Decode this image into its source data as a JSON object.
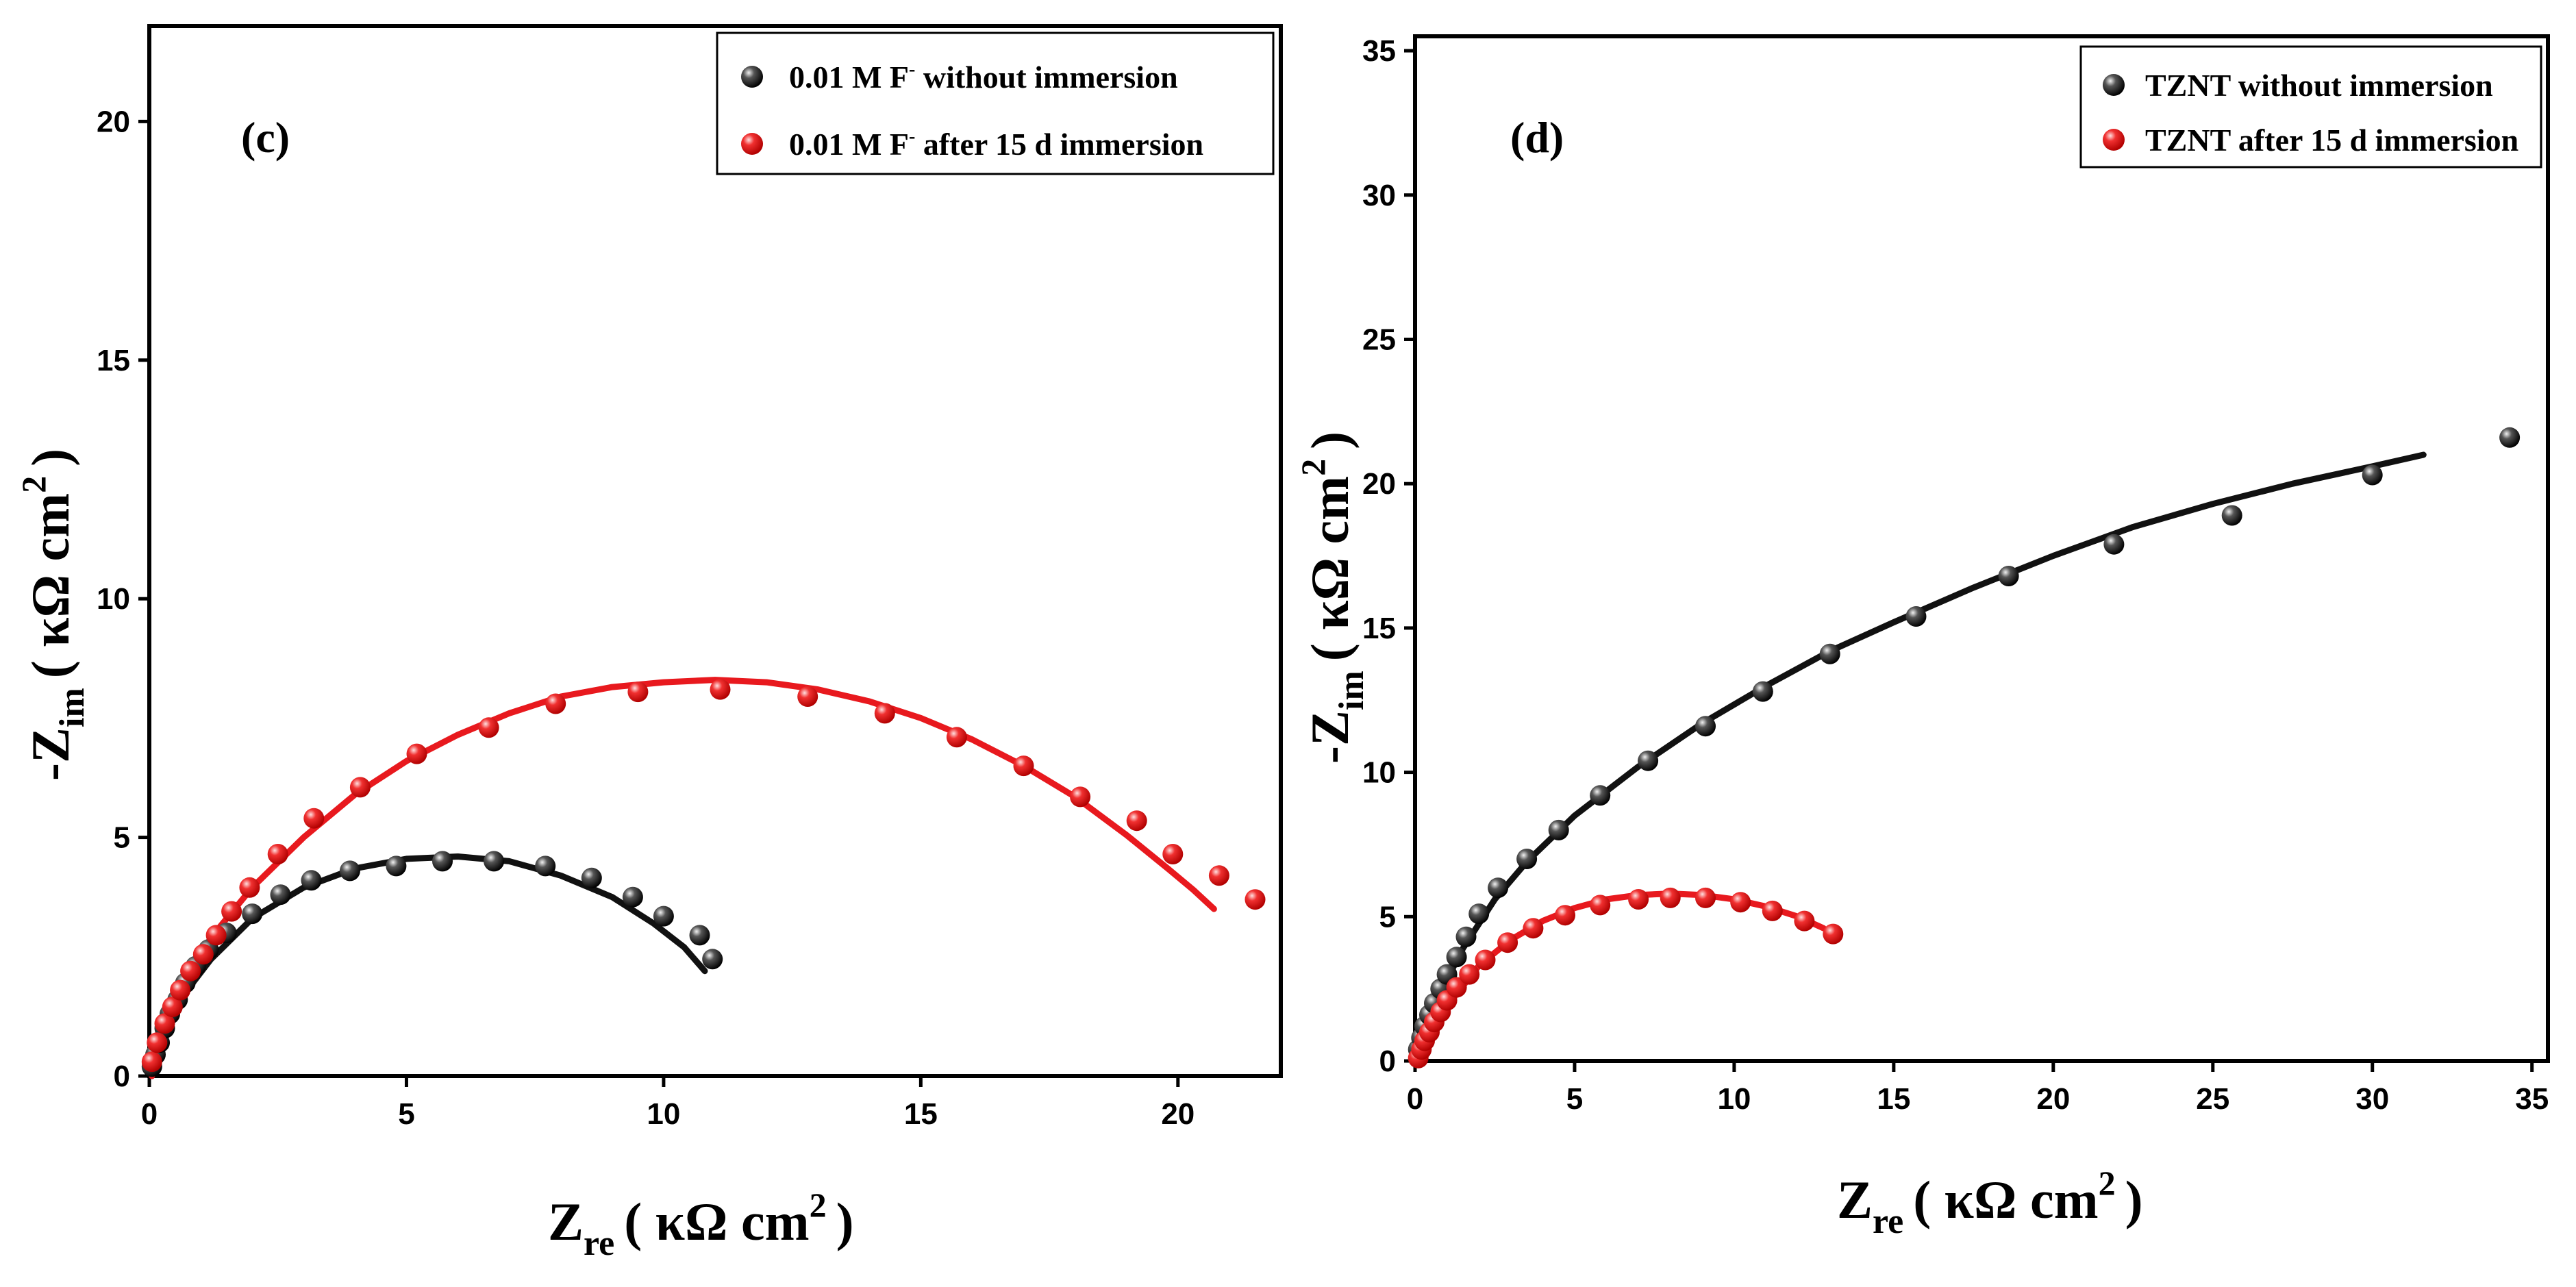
{
  "chart_data": [
    {
      "type": "scatter",
      "panel": "(c)",
      "xlabel_main": "Z",
      "xlabel_sub": "re",
      "xlabel_unit": "( κΩ  cm",
      "xlabel_sup": "2",
      "xlabel_close": ")",
      "ylabel_main": "-Z",
      "ylabel_sub": "im",
      "ylabel_unit": "( κΩ cm",
      "ylabel_sup": "2",
      "ylabel_close": ")",
      "xlim": [
        0,
        22
      ],
      "ylim": [
        0,
        22
      ],
      "xticks": [
        0,
        5,
        10,
        15,
        20
      ],
      "yticks": [
        0,
        5,
        10,
        15,
        20
      ],
      "legend": [
        {
          "text_a": "0.01   M F",
          "sup": "-",
          "text_b": " without immersion",
          "color": "#000000"
        },
        {
          "text_a": "0.01   M F",
          "sup": "-",
          "text_b": " after 15 d immersion",
          "color": "#e8191e"
        }
      ],
      "series": [
        {
          "name": "0.01 M F- without immersion",
          "color": "#111111",
          "points": [
            [
              0.05,
              0.2
            ],
            [
              0.12,
              0.45
            ],
            [
              0.2,
              0.7
            ],
            [
              0.3,
              1.0
            ],
            [
              0.4,
              1.3
            ],
            [
              0.55,
              1.6
            ],
            [
              0.7,
              1.95
            ],
            [
              0.9,
              2.3
            ],
            [
              1.15,
              2.65
            ],
            [
              1.5,
              3.0
            ],
            [
              2.0,
              3.4
            ],
            [
              2.55,
              3.8
            ],
            [
              3.15,
              4.1
            ],
            [
              3.9,
              4.3
            ],
            [
              4.8,
              4.4
            ],
            [
              5.7,
              4.5
            ],
            [
              6.7,
              4.5
            ],
            [
              7.7,
              4.4
            ],
            [
              8.6,
              4.15
            ],
            [
              9.4,
              3.75
            ],
            [
              10.0,
              3.35
            ],
            [
              10.7,
              2.95
            ],
            [
              10.95,
              2.45
            ]
          ],
          "fit": [
            [
              0.05,
              0.0
            ],
            [
              0.3,
              0.9
            ],
            [
              0.7,
              1.75
            ],
            [
              1.2,
              2.45
            ],
            [
              2.0,
              3.3
            ],
            [
              3.0,
              3.95
            ],
            [
              4.0,
              4.35
            ],
            [
              5.0,
              4.55
            ],
            [
              6.0,
              4.6
            ],
            [
              7.0,
              4.5
            ],
            [
              8.0,
              4.2
            ],
            [
              9.0,
              3.75
            ],
            [
              9.8,
              3.2
            ],
            [
              10.4,
              2.7
            ],
            [
              10.8,
              2.2
            ]
          ]
        },
        {
          "name": "0.01 M F- after 15 d immersion",
          "color": "#e8191e",
          "points": [
            [
              0.05,
              0.3
            ],
            [
              0.15,
              0.7
            ],
            [
              0.3,
              1.1
            ],
            [
              0.45,
              1.45
            ],
            [
              0.6,
              1.8
            ],
            [
              0.8,
              2.2
            ],
            [
              1.05,
              2.55
            ],
            [
              1.3,
              2.95
            ],
            [
              1.6,
              3.45
            ],
            [
              1.95,
              3.95
            ],
            [
              2.5,
              4.65
            ],
            [
              3.2,
              5.4
            ],
            [
              4.1,
              6.05
            ],
            [
              5.2,
              6.75
            ],
            [
              6.6,
              7.3
            ],
            [
              7.9,
              7.8
            ],
            [
              9.5,
              8.05
            ],
            [
              11.1,
              8.1
            ],
            [
              12.8,
              7.95
            ],
            [
              14.3,
              7.6
            ],
            [
              15.7,
              7.1
            ],
            [
              17.0,
              6.5
            ],
            [
              18.1,
              5.85
            ],
            [
              19.2,
              5.35
            ],
            [
              19.9,
              4.65
            ],
            [
              20.8,
              4.2
            ],
            [
              21.5,
              3.7
            ]
          ],
          "fit": [
            [
              0.05,
              0.0
            ],
            [
              0.3,
              1.0
            ],
            [
              0.7,
              2.0
            ],
            [
              1.2,
              2.9
            ],
            [
              2.0,
              3.95
            ],
            [
              3.0,
              5.0
            ],
            [
              4.0,
              5.9
            ],
            [
              5.0,
              6.6
            ],
            [
              6.0,
              7.15
            ],
            [
              7.0,
              7.6
            ],
            [
              8.0,
              7.95
            ],
            [
              9.0,
              8.15
            ],
            [
              10.0,
              8.25
            ],
            [
              11.0,
              8.3
            ],
            [
              12.0,
              8.25
            ],
            [
              13.0,
              8.1
            ],
            [
              14.0,
              7.85
            ],
            [
              15.0,
              7.5
            ],
            [
              16.0,
              7.05
            ],
            [
              17.0,
              6.5
            ],
            [
              18.0,
              5.85
            ],
            [
              19.0,
              5.05
            ],
            [
              19.8,
              4.35
            ],
            [
              20.3,
              3.9
            ],
            [
              20.7,
              3.5
            ]
          ]
        }
      ]
    },
    {
      "type": "scatter",
      "panel": "(d)",
      "xlabel_main": "Z",
      "xlabel_sub": "re",
      "xlabel_unit": "( κΩ  cm",
      "xlabel_sup": "2",
      "xlabel_close": ")",
      "ylabel_main": "-Z",
      "ylabel_sub": "im",
      "ylabel_unit": "( κΩ cm",
      "ylabel_sup": "2",
      "ylabel_close": ")",
      "xlim": [
        0,
        35.5
      ],
      "ylim": [
        0,
        35.5
      ],
      "xticks": [
        0,
        5,
        10,
        15,
        20,
        25,
        30,
        35
      ],
      "yticks": [
        0,
        5,
        10,
        15,
        20,
        25,
        30,
        35
      ],
      "legend": [
        {
          "text_a": "TZNT without immersion",
          "sup": "",
          "text_b": "",
          "color": "#000000"
        },
        {
          "text_a": "TZNT after 15 d immersion",
          "sup": "",
          "text_b": "",
          "color": "#e8191e"
        }
      ],
      "series": [
        {
          "name": "TZNT without immersion",
          "color": "#111111",
          "points": [
            [
              0.1,
              0.4
            ],
            [
              0.2,
              0.8
            ],
            [
              0.3,
              1.2
            ],
            [
              0.45,
              1.6
            ],
            [
              0.6,
              2.0
            ],
            [
              0.8,
              2.5
            ],
            [
              1.0,
              3.0
            ],
            [
              1.3,
              3.6
            ],
            [
              1.6,
              4.3
            ],
            [
              2.0,
              5.1
            ],
            [
              2.6,
              6.0
            ],
            [
              3.5,
              7.0
            ],
            [
              4.5,
              8.0
            ],
            [
              5.8,
              9.2
            ],
            [
              7.3,
              10.4
            ],
            [
              9.1,
              11.6
            ],
            [
              10.9,
              12.8
            ],
            [
              13.0,
              14.1
            ],
            [
              15.7,
              15.4
            ],
            [
              18.6,
              16.8
            ],
            [
              21.9,
              17.9
            ],
            [
              25.6,
              18.9
            ],
            [
              30.0,
              20.3
            ],
            [
              34.3,
              21.6
            ]
          ],
          "fit": [
            [
              0.0,
              0.0
            ],
            [
              0.3,
              1.1
            ],
            [
              0.8,
              2.4
            ],
            [
              1.5,
              3.9
            ],
            [
              2.5,
              5.6
            ],
            [
              3.5,
              6.9
            ],
            [
              5.0,
              8.5
            ],
            [
              7.0,
              10.2
            ],
            [
              9.0,
              11.7
            ],
            [
              11.0,
              13.0
            ],
            [
              13.0,
              14.2
            ],
            [
              15.0,
              15.2
            ],
            [
              17.5,
              16.4
            ],
            [
              20.0,
              17.5
            ],
            [
              22.5,
              18.5
            ],
            [
              25.0,
              19.3
            ],
            [
              27.5,
              20.0
            ],
            [
              30.0,
              20.6
            ],
            [
              31.6,
              21.0
            ]
          ]
        },
        {
          "name": "TZNT after 15 d immersion",
          "color": "#e8191e",
          "points": [
            [
              0.1,
              0.1
            ],
            [
              0.2,
              0.4
            ],
            [
              0.3,
              0.7
            ],
            [
              0.45,
              1.0
            ],
            [
              0.6,
              1.35
            ],
            [
              0.8,
              1.7
            ],
            [
              1.0,
              2.1
            ],
            [
              1.3,
              2.55
            ],
            [
              1.7,
              3.0
            ],
            [
              2.2,
              3.5
            ],
            [
              2.9,
              4.1
            ],
            [
              3.7,
              4.6
            ],
            [
              4.7,
              5.05
            ],
            [
              5.8,
              5.4
            ],
            [
              7.0,
              5.6
            ],
            [
              8.0,
              5.65
            ],
            [
              9.1,
              5.65
            ],
            [
              10.2,
              5.5
            ],
            [
              11.2,
              5.2
            ],
            [
              12.2,
              4.85
            ],
            [
              13.1,
              4.4
            ]
          ],
          "fit": [
            [
              0.0,
              0.0
            ],
            [
              0.4,
              0.8
            ],
            [
              1.0,
              1.9
            ],
            [
              2.0,
              3.3
            ],
            [
              3.0,
              4.2
            ],
            [
              4.0,
              4.85
            ],
            [
              5.0,
              5.3
            ],
            [
              6.0,
              5.6
            ],
            [
              7.0,
              5.75
            ],
            [
              8.0,
              5.8
            ],
            [
              9.0,
              5.75
            ],
            [
              10.0,
              5.6
            ],
            [
              11.0,
              5.35
            ],
            [
              12.0,
              5.0
            ],
            [
              12.8,
              4.6
            ]
          ]
        }
      ]
    }
  ]
}
